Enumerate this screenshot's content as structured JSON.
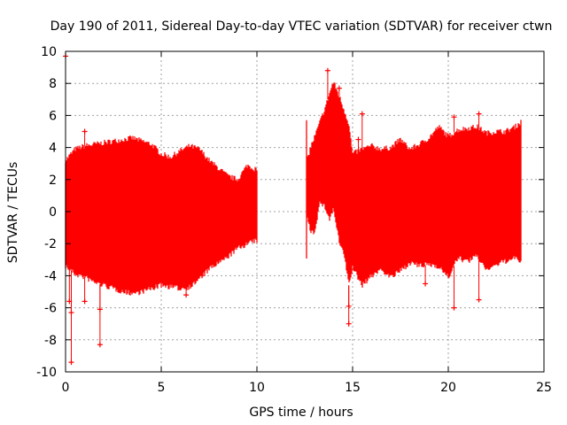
{
  "chart_data": {
    "type": "scatter",
    "title": "Day 190 of 2011, Sidereal Day-to-day VTEC variation (SDTVAR) for receiver ctwn",
    "xlabel": "GPS time / hours",
    "ylabel": "SDTVAR / TECUs",
    "xlim": [
      0,
      25
    ],
    "ylim": [
      -10,
      10
    ],
    "x_ticks": [
      "0",
      "5",
      "10",
      "15",
      "20",
      "25"
    ],
    "y_ticks": [
      "-10",
      "-8",
      "-6",
      "-4",
      "-2",
      "0",
      "2",
      "4",
      "6",
      "8",
      "10"
    ],
    "grid": true,
    "series_color": "#ff0000",
    "series": [
      {
        "name": "SDTVAR",
        "envelope": {
          "x": [
            0.0,
            0.5,
            1.0,
            1.5,
            2.0,
            2.5,
            3.0,
            3.5,
            4.0,
            4.5,
            5.0,
            5.5,
            6.0,
            6.5,
            7.0,
            7.5,
            8.0,
            8.5,
            9.0,
            9.5,
            10.0
          ],
          "upper": [
            3.2,
            3.9,
            4.1,
            4.2,
            4.3,
            4.4,
            4.5,
            4.6,
            4.4,
            4.2,
            3.6,
            3.4,
            3.8,
            4.1,
            3.9,
            3.2,
            2.7,
            2.2,
            2.0,
            2.9,
            2.6
          ],
          "lower": [
            -3.4,
            -3.9,
            -4.1,
            -4.4,
            -4.6,
            -4.8,
            -5.0,
            -5.1,
            -5.0,
            -4.8,
            -4.6,
            -4.7,
            -4.8,
            -4.7,
            -4.2,
            -3.6,
            -3.2,
            -2.8,
            -2.3,
            -2.0,
            -1.8
          ]
        },
        "outliers": [
          {
            "x": 0.0,
            "y": 9.7
          },
          {
            "x": 0.3,
            "y": -9.4
          },
          {
            "x": 0.3,
            "y": -6.3
          },
          {
            "x": 0.2,
            "y": -5.6
          },
          {
            "x": 1.0,
            "y": -5.6
          },
          {
            "x": 1.0,
            "y": 5.0
          },
          {
            "x": 1.8,
            "y": -8.3
          },
          {
            "x": 1.8,
            "y": -6.1
          },
          {
            "x": 6.3,
            "y": -5.2
          },
          {
            "x": 8.2,
            "y": -2.8
          }
        ]
      },
      {
        "name": "SDTVAR",
        "envelope": {
          "x": [
            12.6,
            12.8,
            13.0,
            13.3,
            13.6,
            13.8,
            14.0,
            14.3,
            14.6,
            14.8,
            15.0,
            15.5,
            16.0,
            16.5,
            17.0,
            17.5,
            18.0,
            18.5,
            19.0,
            19.5,
            20.0,
            20.5,
            21.0,
            21.5,
            22.0,
            22.5,
            23.0,
            23.5,
            23.8
          ],
          "upper": [
            3.1,
            4.0,
            4.6,
            5.6,
            6.6,
            7.4,
            8.1,
            7.2,
            6.2,
            5.5,
            3.6,
            3.9,
            4.1,
            3.9,
            4.0,
            4.5,
            3.9,
            4.2,
            4.6,
            5.3,
            4.7,
            5.1,
            5.2,
            5.3,
            4.9,
            5.0,
            5.0,
            5.3,
            5.6
          ],
          "lower": [
            -0.3,
            -1.2,
            -1.3,
            0.6,
            0.2,
            -0.5,
            0.2,
            -1.9,
            -2.9,
            -4.6,
            -3.5,
            -4.6,
            -4.0,
            -3.6,
            -4.1,
            -3.7,
            -3.2,
            -3.4,
            -3.3,
            -3.4,
            -4.1,
            -2.9,
            -3.1,
            -2.8,
            -3.6,
            -3.3,
            -3.1,
            -2.9,
            -3.1
          ]
        },
        "outliers": [
          {
            "x": 13.7,
            "y": 8.8
          },
          {
            "x": 14.3,
            "y": 7.7
          },
          {
            "x": 15.5,
            "y": 6.1
          },
          {
            "x": 15.3,
            "y": 4.5
          },
          {
            "x": 14.8,
            "y": -7.0
          },
          {
            "x": 14.8,
            "y": -5.9
          },
          {
            "x": 18.8,
            "y": -4.5
          },
          {
            "x": 20.3,
            "y": 5.9
          },
          {
            "x": 20.3,
            "y": -6.0
          },
          {
            "x": 21.6,
            "y": 6.1
          },
          {
            "x": 21.6,
            "y": -5.5
          },
          {
            "x": 22.5,
            "y": -2.3
          }
        ]
      }
    ]
  }
}
